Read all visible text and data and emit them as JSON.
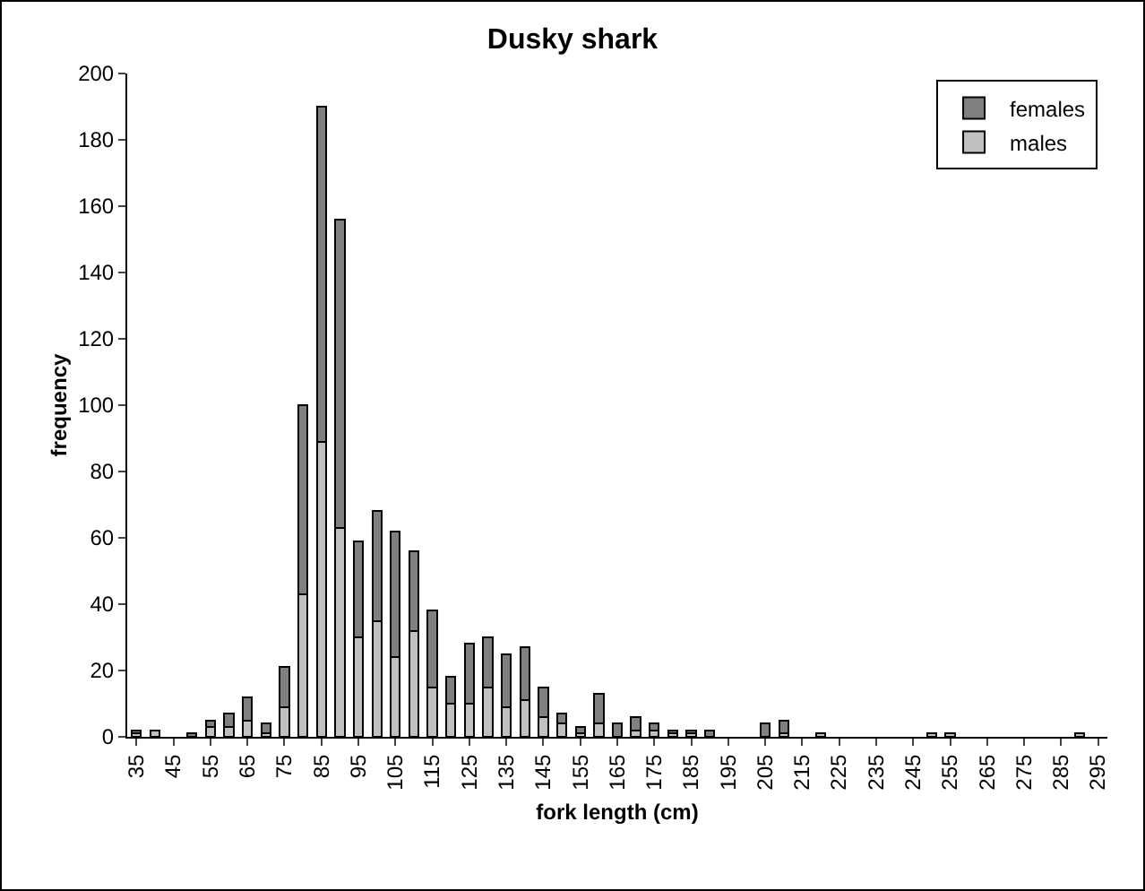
{
  "chart_data": {
    "type": "bar",
    "title": "Dusky shark",
    "xlabel": "fork length (cm)",
    "ylabel": "frequency",
    "categories": [
      "35",
      null,
      "45",
      null,
      "55",
      null,
      "65",
      null,
      "75",
      null,
      "85",
      null,
      "95",
      null,
      "105",
      null,
      "115",
      null,
      "125",
      null,
      "135",
      null,
      "145",
      null,
      "155",
      null,
      "165",
      null,
      "175",
      null,
      "185",
      null,
      "195",
      null,
      "205",
      null,
      "215",
      null,
      "225",
      null,
      "235",
      null,
      "245",
      null,
      "255",
      null,
      "265",
      null,
      "275",
      null,
      "285",
      null,
      "295"
    ],
    "series": [
      {
        "name": "males",
        "color": "#c0c0c0",
        "values": [
          1,
          2,
          0,
          0,
          3,
          3,
          5,
          1,
          9,
          43,
          89,
          63,
          30,
          35,
          24,
          32,
          15,
          10,
          10,
          15,
          9,
          11,
          6,
          4,
          1,
          4,
          0,
          2,
          2,
          1,
          1,
          0,
          0,
          0,
          0,
          1,
          0,
          1,
          0,
          0,
          0,
          0,
          0,
          1,
          1,
          0,
          0,
          0,
          0,
          0,
          0,
          1,
          0
        ]
      },
      {
        "name": "females",
        "color": "#808080",
        "values": [
          1,
          0,
          0,
          1,
          2,
          4,
          7,
          3,
          12,
          57,
          101,
          93,
          29,
          33,
          38,
          24,
          23,
          8,
          18,
          15,
          16,
          16,
          9,
          3,
          2,
          9,
          4,
          4,
          2,
          1,
          1,
          2,
          0,
          0,
          4,
          4,
          0,
          0,
          0,
          0,
          0,
          0,
          0,
          0,
          0,
          0,
          0,
          0,
          0,
          0,
          0,
          0,
          0
        ]
      }
    ],
    "stacked": true,
    "ylim": [
      0,
      200
    ],
    "yticks": [
      0,
      20,
      40,
      60,
      80,
      100,
      120,
      140,
      160,
      180,
      200
    ],
    "grid": false,
    "legend": "top right"
  }
}
